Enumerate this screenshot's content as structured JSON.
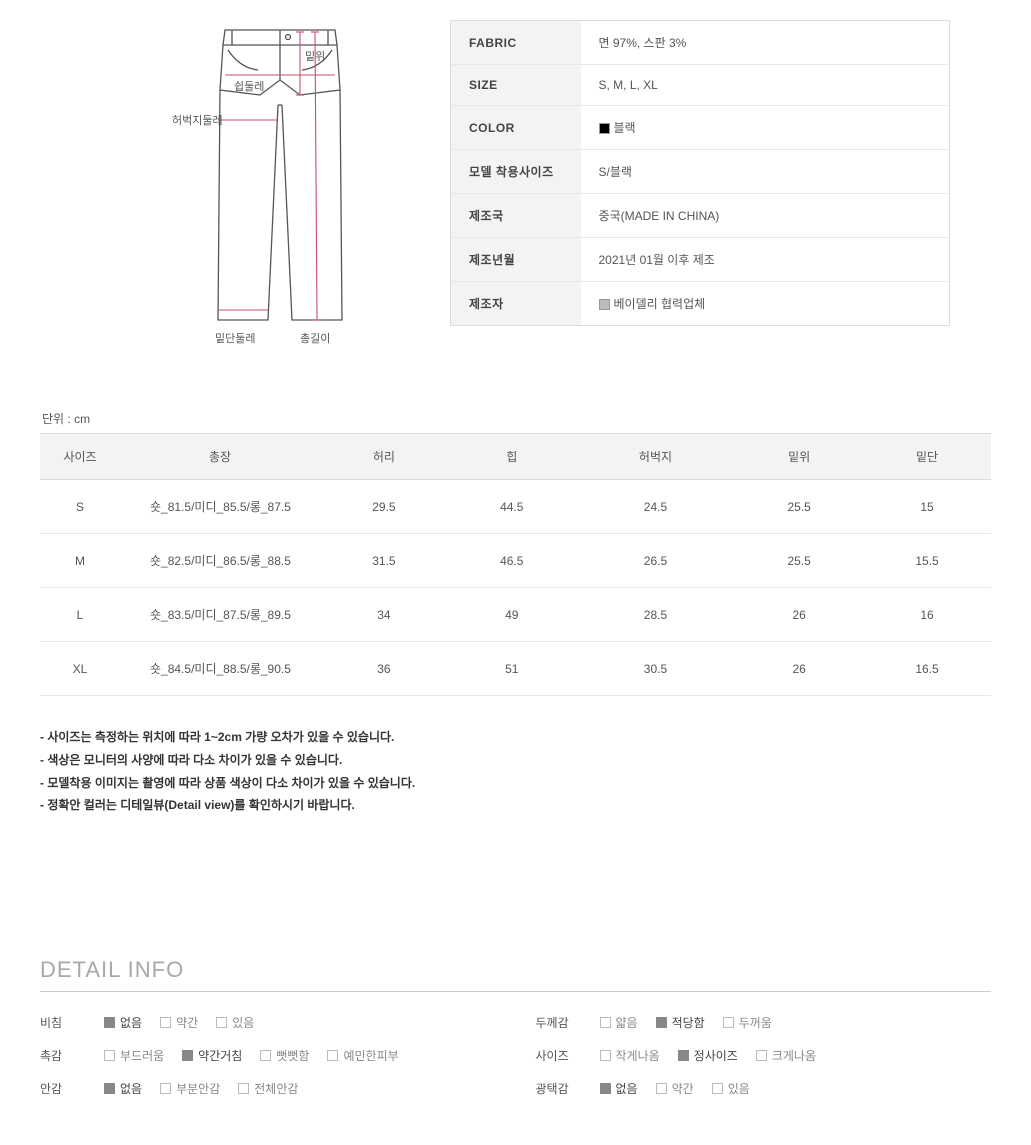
{
  "diagram": {
    "labels": {
      "rise": "밑위",
      "crotch": "쉽둘레",
      "thigh": "허벅지둘레",
      "hem": "밑단둘레",
      "length": "총길이"
    },
    "line_color": "#c94f6b",
    "outline_color": "#555555"
  },
  "spec": {
    "rows": [
      {
        "key": "FABRIC",
        "value": "면 97%, 스판 3%"
      },
      {
        "key": "SIZE",
        "value": "S, M, L, XL"
      },
      {
        "key": "COLOR",
        "value": "블랙",
        "swatch": "#000000"
      },
      {
        "key": "모델 착용사이즈",
        "value": "S/블랙"
      },
      {
        "key": "제조국",
        "value": "중국(MADE IN CHINA)"
      },
      {
        "key": "제조년월",
        "value": "2021년 01월 이후 제조"
      },
      {
        "key": "제조자",
        "value": "베이델리 협력업체",
        "swatch": "#bbbbbb"
      }
    ]
  },
  "unit_label": "단위 : cm",
  "size_table": {
    "headers": [
      "사이즈",
      "총장",
      "허리",
      "힙",
      "허벅지",
      "밑위",
      "밑단"
    ],
    "rows": [
      [
        "S",
        "숏_81.5/미디_85.5/롱_87.5",
        "29.5",
        "44.5",
        "24.5",
        "25.5",
        "15"
      ],
      [
        "M",
        "숏_82.5/미디_86.5/롱_88.5",
        "31.5",
        "46.5",
        "26.5",
        "25.5",
        "15.5"
      ],
      [
        "L",
        "숏_83.5/미디_87.5/롱_89.5",
        "34",
        "49",
        "28.5",
        "26",
        "16"
      ],
      [
        "XL",
        "숏_84.5/미디_88.5/롱_90.5",
        "36",
        "51",
        "30.5",
        "26",
        "16.5"
      ]
    ]
  },
  "notes": [
    "- 사이즈는 측정하는 위치에 따라 1~2cm 가량 오차가 있을 수 있습니다.",
    "- 색상은 모니터의 사양에 따라 다소 차이가 있을 수 있습니다.",
    "- 모델착용 이미지는 촬영에 따라 상품 색상이 다소 차이가 있을 수 있습니다.",
    "- 정확안 컬러는 디테일뷰(Detail view)를 확인하시기 바랍니다."
  ],
  "detail_info": {
    "title": "DETAIL INFO",
    "left": [
      {
        "label": "비침",
        "options": [
          {
            "t": "없음",
            "c": true
          },
          {
            "t": "약간",
            "c": false
          },
          {
            "t": "있음",
            "c": false
          }
        ]
      },
      {
        "label": "촉감",
        "options": [
          {
            "t": "부드러움",
            "c": false
          },
          {
            "t": "약간거침",
            "c": true
          },
          {
            "t": "뻣뻣함",
            "c": false
          },
          {
            "t": "예민한피부",
            "c": false
          }
        ]
      },
      {
        "label": "안감",
        "options": [
          {
            "t": "없음",
            "c": true
          },
          {
            "t": "부분안감",
            "c": false
          },
          {
            "t": "전체안감",
            "c": false
          }
        ]
      }
    ],
    "right": [
      {
        "label": "두께감",
        "options": [
          {
            "t": "얇음",
            "c": false
          },
          {
            "t": "적당함",
            "c": true
          },
          {
            "t": "두꺼움",
            "c": false
          }
        ]
      },
      {
        "label": "사이즈",
        "options": [
          {
            "t": "작게나옴",
            "c": false
          },
          {
            "t": "정사이즈",
            "c": true
          },
          {
            "t": "크게나옴",
            "c": false
          }
        ]
      },
      {
        "label": "광택감",
        "options": [
          {
            "t": "없음",
            "c": true
          },
          {
            "t": "약간",
            "c": false
          },
          {
            "t": "있음",
            "c": false
          }
        ]
      }
    ]
  }
}
